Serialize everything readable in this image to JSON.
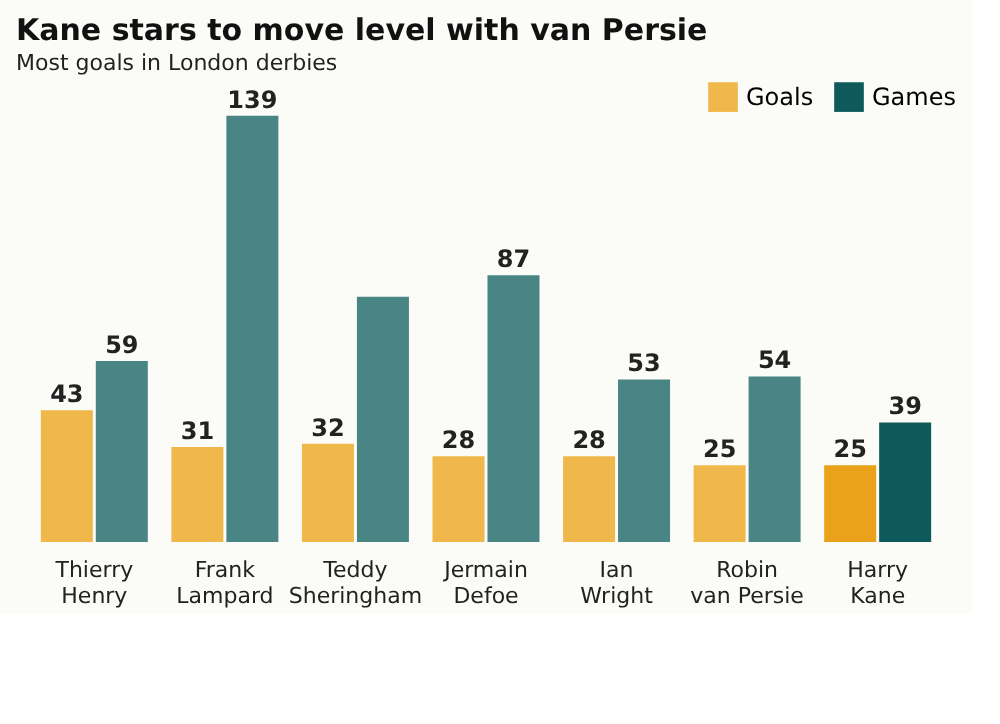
{
  "chart_data": {
    "type": "bar",
    "title": "Kane stars to move level with van Persie",
    "subtitle": "Most goals in London derbies",
    "categories": [
      "Thierry Henry",
      "Frank Lampard",
      "Teddy Sheringham",
      "Jermain Defoe",
      "Ian Wright",
      "Robin van Persie",
      "Harry Kane"
    ],
    "series": [
      {
        "name": "Goals",
        "color": "#f0b84a",
        "colors": [
          "#f0b84a",
          "#f0b84a",
          "#f0b84a",
          "#f0b84a",
          "#f0b84a",
          "#f0b84a",
          "#e9a21a"
        ],
        "values": [
          43,
          31,
          32,
          28,
          28,
          25,
          25
        ],
        "value_labels": [
          "43",
          "31",
          "32",
          "28",
          "28",
          "25",
          "25"
        ]
      },
      {
        "name": "Games",
        "color": "#0e5a5a",
        "colors": [
          "#4a8585",
          "#4a8585",
          "#4a8585",
          "#4a8585",
          "#4a8585",
          "#4a8585",
          "#0e5a5a"
        ],
        "values": [
          59,
          139,
          80,
          87,
          53,
          54,
          39
        ],
        "value_labels": [
          "59",
          "139",
          null,
          "87",
          "53",
          "54",
          "39"
        ]
      }
    ],
    "ylim": [
      0,
      150
    ],
    "legend": "top right",
    "grid": false
  }
}
